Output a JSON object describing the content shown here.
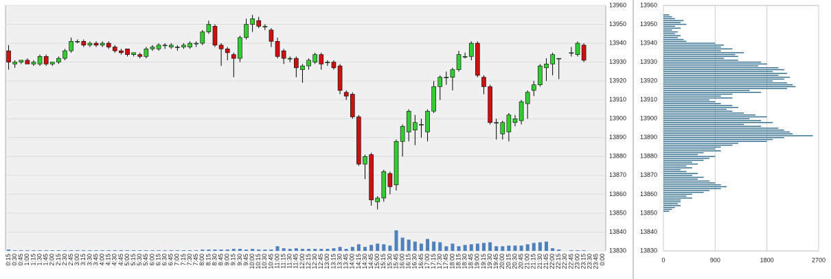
{
  "chart_data": [
    {
      "type": "candlestick",
      "categories": [
        "0:15",
        "0:30",
        "0:45",
        "1:00",
        "1:15",
        "1:30",
        "1:45",
        "2:00",
        "2:15",
        "2:30",
        "2:45",
        "3:00",
        "3:15",
        "3:30",
        "3:45",
        "4:00",
        "4:15",
        "4:30",
        "4:45",
        "5:00",
        "5:15",
        "5:30",
        "5:45",
        "6:00",
        "6:15",
        "6:30",
        "6:45",
        "7:00",
        "7:15",
        "7:30",
        "7:45",
        "8:00",
        "8:15",
        "8:30",
        "8:45",
        "9:00",
        "9:15",
        "9:30",
        "9:45",
        "10:00",
        "10:15",
        "10:30",
        "10:45",
        "11:00",
        "11:15",
        "11:30",
        "11:45",
        "12:00",
        "12:15",
        "12:30",
        "12:45",
        "13:00",
        "13:15",
        "13:30",
        "13:45",
        "14:00",
        "14:15",
        "14:30",
        "14:45",
        "15:00",
        "15:15",
        "15:30",
        "15:45",
        "16:00",
        "16:15",
        "16:30",
        "16:45",
        "17:00",
        "17:15",
        "17:30",
        "17:45",
        "18:00",
        "18:15",
        "18:30",
        "18:45",
        "19:00",
        "19:15",
        "19:30",
        "19:45",
        "20:00",
        "20:15",
        "20:30",
        "20:45",
        "21:00",
        "21:15",
        "21:30",
        "21:45",
        "22:00",
        "22:15",
        "22:30",
        "22:45",
        "23:00",
        "23:15",
        "23:30",
        "23:45",
        "0:00"
      ],
      "open": [
        13936,
        13929,
        13930,
        13931,
        13929,
        13929,
        13933,
        13929,
        13930,
        13932,
        13936,
        13941,
        13941,
        13939,
        13940,
        13939,
        13940,
        13938,
        13936,
        13937,
        13934,
        13934,
        13933,
        13937,
        13937,
        13939,
        13938,
        13938,
        13938,
        13938,
        13940,
        13940,
        13946,
        13949,
        13939,
        13937,
        13934,
        13932,
        13943,
        13950,
        13952,
        13949,
        13947,
        13941,
        13936,
        13932,
        13932,
        13926,
        13928,
        13930,
        13934,
        13930,
        13930,
        13928,
        13914,
        13913,
        13901,
        13876,
        13881,
        13856,
        13858,
        13871,
        13865,
        13888,
        13893,
        13894,
        13897,
        13893,
        13904,
        13917,
        13922,
        13922,
        13926,
        13933,
        13933,
        13940,
        13922,
        13917,
        13898,
        13892,
        13893,
        13898,
        13899,
        13908,
        13915,
        13918,
        13927,
        13929,
        13932,
        null,
        13935,
        13934,
        13939,
        null,
        null,
        null
      ],
      "high": [
        13939,
        13931,
        13931,
        13932,
        13931,
        13934,
        13934,
        13930,
        13933,
        13937,
        13943,
        13942,
        13942,
        13941,
        13941,
        13941,
        13941,
        13939,
        13937,
        13937,
        13935,
        13935,
        13938,
        13939,
        13940,
        13940,
        13940,
        13939,
        13940,
        13941,
        13941,
        13947,
        13952,
        13950,
        13940,
        13938,
        13935,
        13944,
        13953,
        13955,
        13954,
        13950,
        13948,
        13943,
        13937,
        13933,
        13933,
        13929,
        13932,
        13935,
        13935,
        13931,
        13931,
        13929,
        13915,
        13914,
        13902,
        13881,
        13882,
        13859,
        13873,
        13872,
        13889,
        13897,
        13905,
        13902,
        13900,
        13905,
        13920,
        13923,
        13925,
        13927,
        13936,
        13935,
        13941,
        13941,
        13923,
        13918,
        13900,
        13899,
        13903,
        13902,
        13910,
        13915,
        13920,
        13929,
        13932,
        13935,
        13932,
        null,
        13938,
        13941,
        13940,
        null,
        null,
        null
      ],
      "low": [
        13926,
        13927,
        13929,
        13929,
        13928,
        13928,
        13928,
        13928,
        13929,
        13931,
        13935,
        13940,
        13938,
        13938,
        13938,
        13938,
        13937,
        13935,
        13934,
        13933,
        13933,
        13932,
        13932,
        13936,
        13936,
        13937,
        13937,
        13936,
        13937,
        13937,
        13938,
        13939,
        13945,
        13938,
        13928,
        13931,
        13922,
        13930,
        13942,
        13946,
        13948,
        13947,
        13938,
        13932,
        13929,
        13930,
        13922,
        13919,
        13926,
        13929,
        13926,
        13928,
        13926,
        13913,
        13910,
        13900,
        13875,
        13868,
        13854,
        13852,
        13856,
        13860,
        13862,
        13880,
        13888,
        13886,
        13890,
        13888,
        13903,
        13910,
        13918,
        13915,
        13925,
        13932,
        13931,
        13922,
        13913,
        13897,
        13889,
        13889,
        13888,
        13896,
        13897,
        13900,
        13912,
        13917,
        13920,
        13923,
        13921,
        null,
        13933,
        13933,
        13930,
        null,
        null,
        null
      ],
      "close": [
        13930,
        13930,
        13931,
        13929,
        13930,
        13933,
        13929,
        13930,
        13932,
        13936,
        13941,
        13941,
        13939,
        13940,
        13939,
        13940,
        13938,
        13936,
        13935,
        13934,
        13935,
        13933,
        13937,
        13938,
        13939,
        13939,
        13939,
        13938,
        13939,
        13940,
        13940,
        13946,
        13950,
        13939,
        13937,
        13935,
        13932,
        13943,
        13950,
        13953,
        13949,
        13949,
        13941,
        13933,
        13932,
        13932,
        13927,
        13928,
        13931,
        13934,
        13929,
        13930,
        13927,
        13915,
        13912,
        13901,
        13876,
        13880,
        13857,
        13858,
        13872,
        13864,
        13888,
        13896,
        13904,
        13898,
        13897,
        13904,
        13917,
        13922,
        13922,
        13926,
        13934,
        13933,
        13940,
        13923,
        13917,
        13898,
        13898,
        13898,
        13902,
        13900,
        13909,
        13914,
        13918,
        13928,
        13929,
        13934,
        13932,
        null,
        13935,
        13940,
        13931,
        null,
        null,
        null
      ],
      "volume": [
        2,
        1,
        1,
        1,
        1,
        1,
        1,
        1,
        1,
        1,
        1,
        1,
        1,
        1,
        1,
        1,
        1,
        1,
        1,
        1,
        1,
        1,
        1,
        1,
        1,
        1,
        1,
        1,
        1,
        1,
        1,
        2,
        2,
        2,
        2,
        2,
        3,
        3,
        2,
        3,
        2,
        2,
        2,
        7,
        4,
        3,
        4,
        3,
        3,
        3,
        3,
        3,
        4,
        6,
        3,
        6,
        10,
        6,
        9,
        11,
        10,
        8,
        31,
        20,
        17,
        14,
        11,
        18,
        14,
        13,
        7,
        11,
        7,
        9,
        10,
        11,
        12,
        13,
        7,
        7,
        8,
        8,
        8,
        10,
        12,
        13,
        14,
        4,
        2,
        null,
        1,
        1,
        1,
        null,
        null,
        null
      ],
      "up_color": "#33cc33",
      "down_color": "#cc1111",
      "volume_color": "#4f81bd",
      "ylim": [
        13830,
        13960
      ],
      "yticks": [
        13830,
        13840,
        13850,
        13860,
        13870,
        13880,
        13890,
        13900,
        13910,
        13920,
        13930,
        13940,
        13950,
        13960
      ],
      "grid": true
    },
    {
      "type": "barh",
      "y": [
        13955,
        13954,
        13953,
        13952,
        13951,
        13950,
        13949,
        13948,
        13947,
        13946,
        13945,
        13944,
        13943,
        13942,
        13941,
        13940,
        13939,
        13938,
        13937,
        13936,
        13935,
        13934,
        13933,
        13932,
        13931,
        13930,
        13929,
        13928,
        13927,
        13926,
        13925,
        13924,
        13923,
        13922,
        13921,
        13920,
        13919,
        13918,
        13917,
        13916,
        13915,
        13914,
        13913,
        13912,
        13911,
        13910,
        13909,
        13908,
        13907,
        13906,
        13905,
        13904,
        13903,
        13902,
        13901,
        13900,
        13899,
        13898,
        13897,
        13896,
        13895,
        13894,
        13893,
        13892,
        13891,
        13890,
        13889,
        13888,
        13887,
        13886,
        13885,
        13884,
        13883,
        13882,
        13881,
        13880,
        13879,
        13878,
        13877,
        13876,
        13875,
        13874,
        13873,
        13872,
        13871,
        13870,
        13869,
        13868,
        13867,
        13866,
        13865,
        13864,
        13863,
        13862,
        13861,
        13860,
        13859,
        13858,
        13857,
        13856,
        13855,
        13854,
        13853,
        13852,
        13851
      ],
      "values": [
        100,
        150,
        200,
        350,
        300,
        400,
        200,
        300,
        150,
        250,
        200,
        300,
        250,
        350,
        400,
        900,
        1050,
        1000,
        1200,
        1000,
        1400,
        1250,
        1300,
        1050,
        1300,
        1700,
        1800,
        1650,
        2000,
        2100,
        1900,
        2150,
        2000,
        2200,
        2100,
        1900,
        2150,
        2250,
        2300,
        2150,
        1500,
        1700,
        1200,
        1000,
        1200,
        800,
        900,
        1000,
        1200,
        1300,
        1100,
        1200,
        1400,
        1600,
        1800,
        1500,
        1700,
        1900,
        1400,
        1700,
        2000,
        2100,
        2200,
        2250,
        2600,
        2100,
        1900,
        1800,
        1300,
        1200,
        1000,
        900,
        1000,
        700,
        600,
        900,
        800,
        700,
        500,
        600,
        400,
        500,
        300,
        400,
        600,
        500,
        700,
        600,
        800,
        900,
        1000,
        1100,
        1000,
        800,
        700,
        500,
        400,
        500,
        300,
        300,
        250,
        300,
        200,
        150,
        100
      ],
      "color": "#35708f",
      "xlim": [
        0,
        2700
      ],
      "xticks": [
        0,
        900,
        1800,
        2700
      ],
      "ylim": [
        13830,
        13960
      ],
      "yticks": [
        13830,
        13840,
        13850,
        13860,
        13870,
        13880,
        13890,
        13900,
        13910,
        13920,
        13930,
        13940,
        13950,
        13960
      ],
      "grid": true
    }
  ]
}
